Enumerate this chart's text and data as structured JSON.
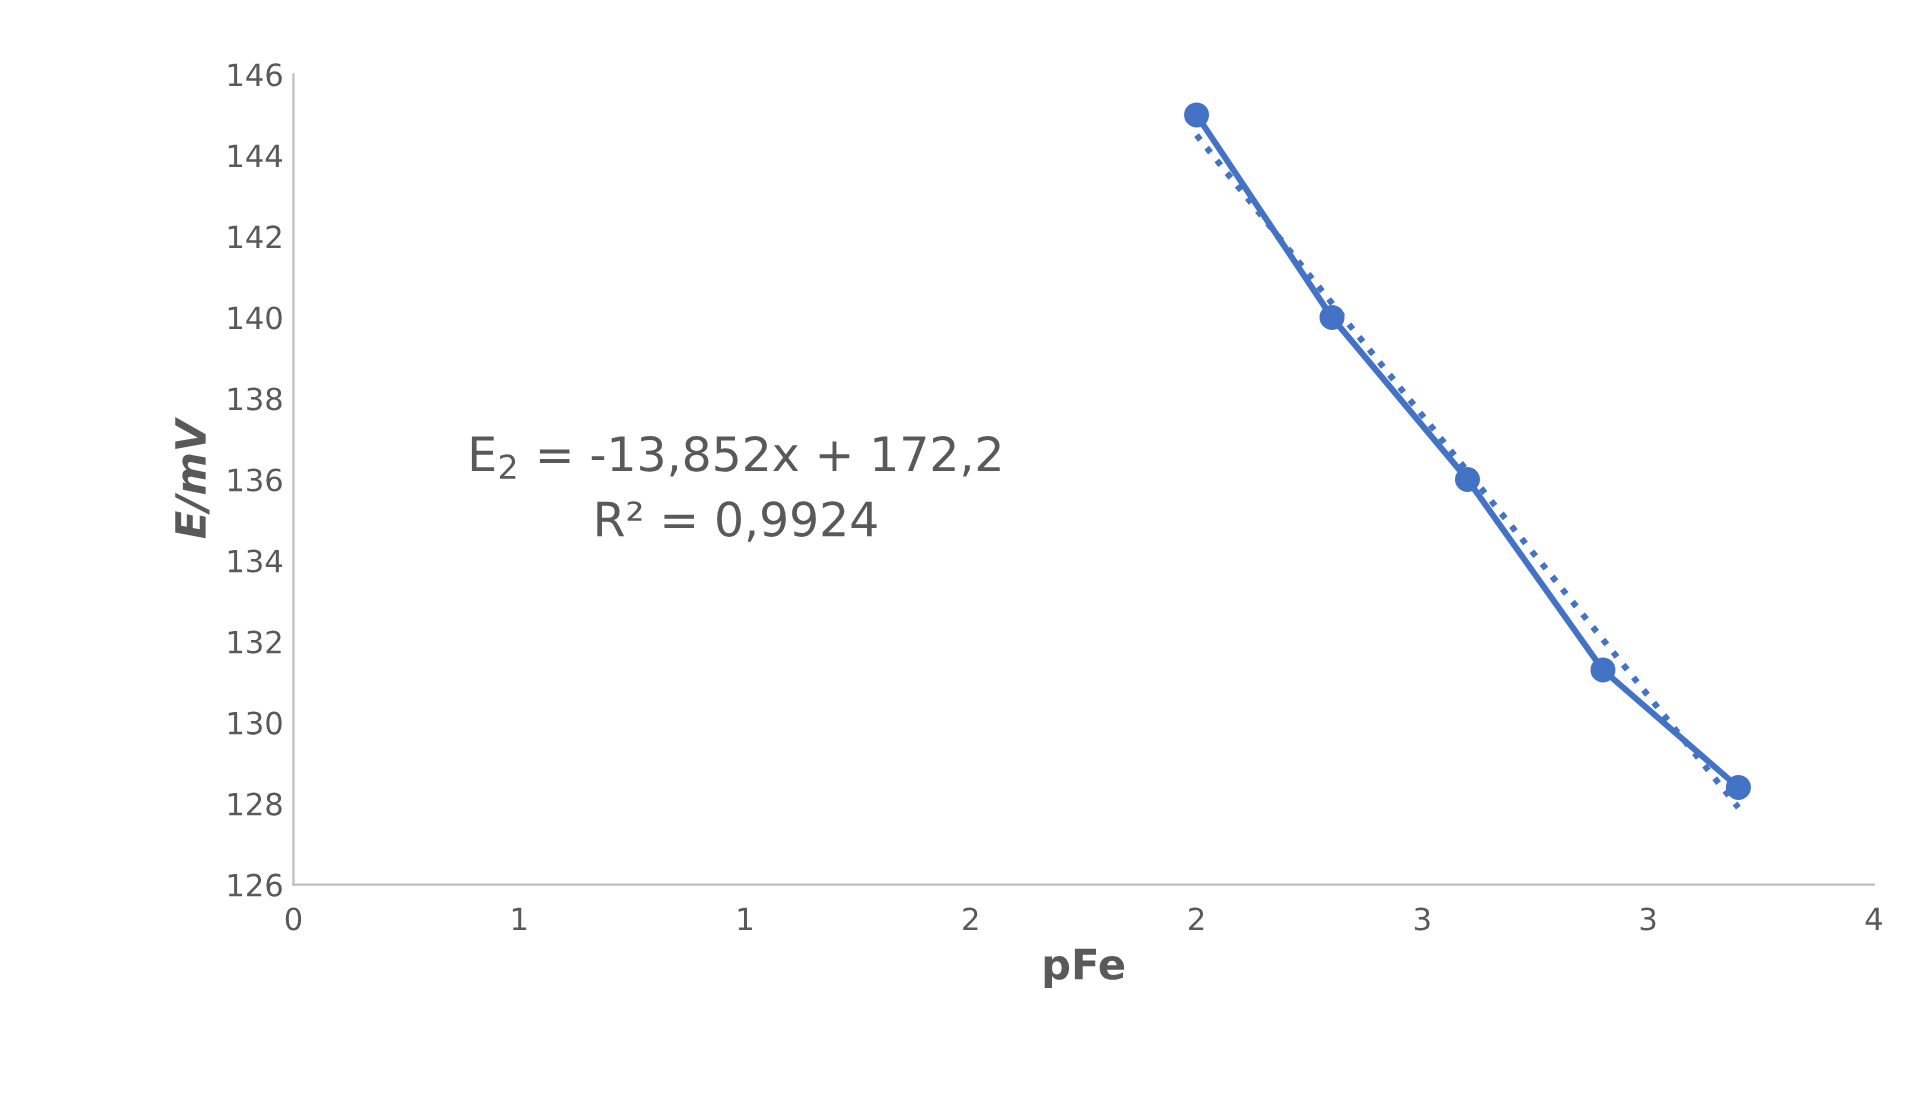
{
  "chart_data": {
    "type": "line",
    "xlabel": "pFe",
    "ylabel": "E/mV",
    "xlim": [
      0,
      3.5
    ],
    "xticks": [
      0,
      {
        "value": 0.5,
        "label": "1"
      },
      {
        "value": 1,
        "label": "1"
      },
      {
        "value": 1.5,
        "label": "2"
      },
      {
        "value": 2,
        "label": "2"
      },
      {
        "value": 2.5,
        "label": "3"
      },
      {
        "value": 3,
        "label": "3"
      },
      {
        "value": 3.5,
        "label": "4"
      }
    ],
    "ylim": [
      126,
      146
    ],
    "yticks": [
      126,
      128,
      130,
      132,
      134,
      136,
      138,
      140,
      142,
      144,
      146
    ],
    "grid": false,
    "legend": false,
    "series": [
      {
        "color": "#4472c4",
        "x": [
          2.0,
          2.3,
          2.6,
          2.9,
          3.2
        ],
        "values": [
          145.0,
          140.0,
          136.0,
          131.3,
          128.4
        ],
        "marker": "circle",
        "line_style": "solid"
      },
      {
        "color": "#4472c4",
        "x": [
          2.0,
          3.2
        ],
        "values": [
          144.5,
          127.9
        ],
        "marker": "none",
        "line_style": "dotted"
      }
    ],
    "annotations": [
      "E$_{2}$ = -13,852x + 172,2",
      "R² = 0,9924"
    ]
  }
}
